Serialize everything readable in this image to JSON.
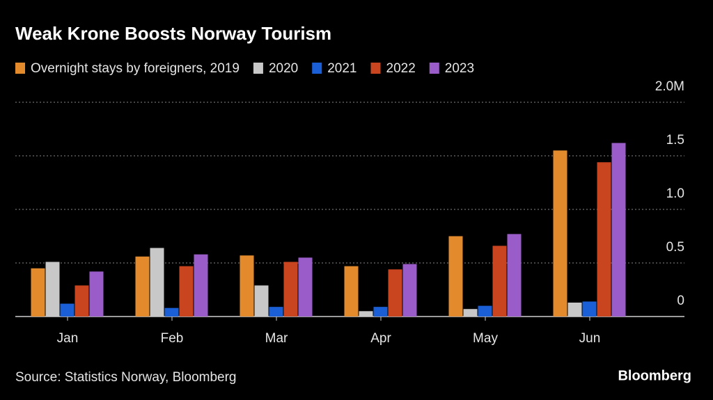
{
  "chart_data": {
    "type": "bar",
    "title": "Weak Krone Boosts Norway Tourism",
    "categories": [
      "Jan",
      "Feb",
      "Mar",
      "Apr",
      "May",
      "Jun"
    ],
    "series": [
      {
        "name": "Overnight stays by foreigners, 2019",
        "color": "#e38b2c",
        "values": [
          0.45,
          0.56,
          0.57,
          0.47,
          0.75,
          1.55
        ]
      },
      {
        "name": "2020",
        "color": "#c8c8c8",
        "values": [
          0.51,
          0.64,
          0.29,
          0.05,
          0.07,
          0.13
        ]
      },
      {
        "name": "2021",
        "color": "#1a5fd6",
        "values": [
          0.12,
          0.08,
          0.09,
          0.09,
          0.1,
          0.14
        ]
      },
      {
        "name": "2022",
        "color": "#c9451f",
        "values": [
          0.29,
          0.47,
          0.51,
          0.44,
          0.66,
          1.44
        ]
      },
      {
        "name": "2023",
        "color": "#9a5cc8",
        "values": [
          0.42,
          0.58,
          0.55,
          0.49,
          0.77,
          1.62
        ]
      }
    ],
    "ylim": [
      0,
      2
    ],
    "yticks": [
      0,
      0.5,
      {
        "value": 1,
        "label": "1.0"
      },
      1.5,
      {
        "value": 2,
        "label": "2.0M"
      }
    ],
    "grid": true,
    "source": "Source: Statistics Norway, Bloomberg",
    "brand": "Bloomberg"
  }
}
